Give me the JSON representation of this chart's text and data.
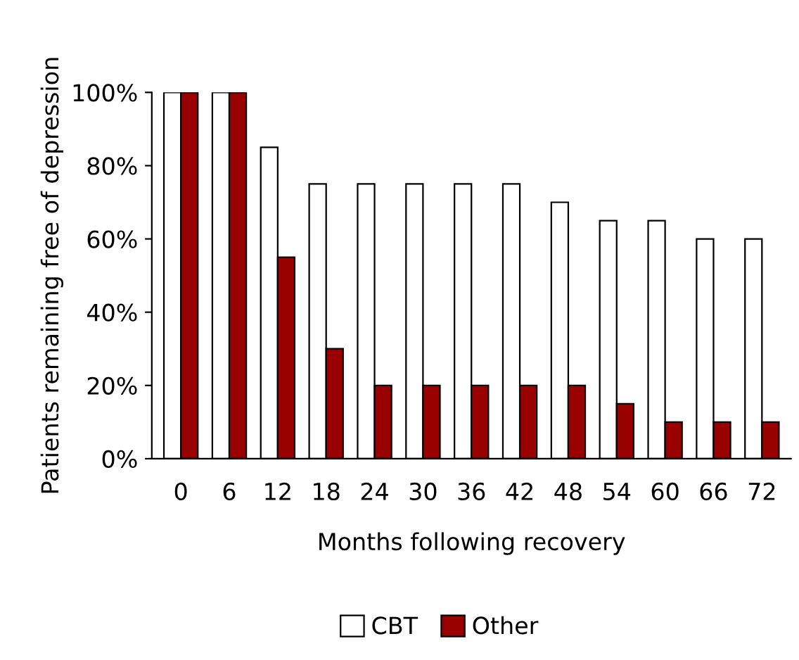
{
  "chart_data": {
    "type": "bar",
    "xlabel": "Months following recovery",
    "ylabel": "Patients remaining free of depression",
    "categories": [
      "0",
      "6",
      "12",
      "18",
      "24",
      "30",
      "36",
      "42",
      "48",
      "54",
      "60",
      "66",
      "72"
    ],
    "series": [
      {
        "name": "CBT",
        "color": "#ffffff",
        "values": [
          100,
          100,
          85,
          75,
          75,
          75,
          75,
          75,
          70,
          65,
          65,
          60,
          60
        ]
      },
      {
        "name": "Other",
        "color": "#990000",
        "values": [
          100,
          100,
          55,
          30,
          20,
          20,
          20,
          20,
          20,
          15,
          10,
          10,
          10
        ]
      }
    ],
    "ylim": [
      0,
      100
    ],
    "yticks": [
      {
        "value": 0,
        "label": "0%"
      },
      {
        "value": 20,
        "label": "20%"
      },
      {
        "value": 40,
        "label": "40%"
      },
      {
        "value": 60,
        "label": "60%"
      },
      {
        "value": 80,
        "label": "80%"
      },
      {
        "value": 100,
        "label": "100%"
      }
    ],
    "grid": false,
    "legend": "bottom"
  }
}
